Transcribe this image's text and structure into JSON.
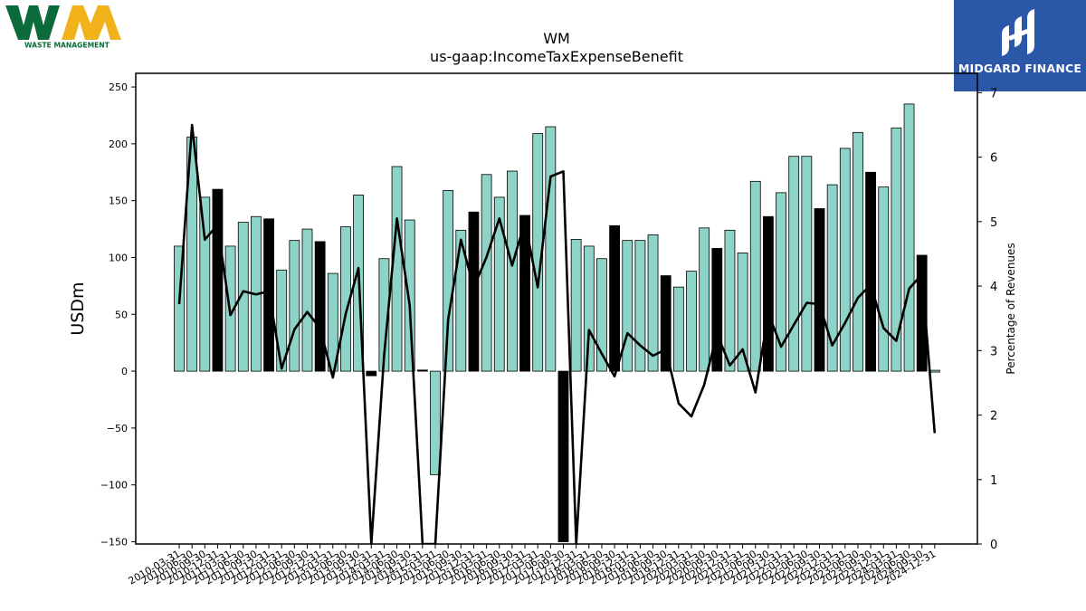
{
  "logos": {
    "left": {
      "name": "Waste Management",
      "text": "WASTE MANAGEMENT",
      "colors": [
        "#0b6b3a",
        "#f2b21b"
      ]
    },
    "right": {
      "name": "Midgard Finance",
      "text": "MIDGARD FINANCE",
      "color": "#2b57a8"
    }
  },
  "chart_data": {
    "type": "bar",
    "title": "WM",
    "subtitle": "us-gaap:IncomeTaxExpenseBenefit",
    "ylabel": "USDm",
    "y2label": "Percentage of Revenues",
    "ylim": [
      -152,
      262
    ],
    "y2lim": [
      0,
      7.3
    ],
    "yticks": [
      -150,
      -100,
      -50,
      0,
      50,
      100,
      150,
      200,
      250
    ],
    "y2ticks": [
      0,
      1,
      2,
      3,
      4,
      5,
      6,
      7
    ],
    "grid": false,
    "colors": {
      "quarter_bar": "#8dd3c7",
      "annual_bar": "#000000",
      "line": "#000000"
    },
    "categories": [
      "2010-03-31",
      "2010-06-30",
      "2010-09-30",
      "2010-12-31",
      "2011-03-31",
      "2011-06-30",
      "2011-09-30",
      "2011-12-31",
      "2012-03-31",
      "2012-06-30",
      "2012-09-30",
      "2012-12-31",
      "2013-03-31",
      "2013-06-30",
      "2013-09-30",
      "2013-12-31",
      "2014-03-31",
      "2014-06-30",
      "2014-09-30",
      "2014-12-31",
      "2015-03-31",
      "2015-06-30",
      "2015-09-30",
      "2015-12-31",
      "2016-03-31",
      "2016-06-30",
      "2016-09-30",
      "2016-12-31",
      "2017-03-31",
      "2017-06-30",
      "2017-09-30",
      "2017-12-31",
      "2018-03-31",
      "2018-06-30",
      "2018-09-30",
      "2018-12-31",
      "2019-03-31",
      "2019-06-30",
      "2019-09-30",
      "2019-12-31",
      "2020-03-31",
      "2020-06-30",
      "2020-09-30",
      "2020-12-31",
      "2021-03-31",
      "2021-06-30",
      "2021-09-30",
      "2021-12-31",
      "2022-03-31",
      "2022-06-30",
      "2022-09-30",
      "2022-12-31",
      "2023-03-31",
      "2023-06-30",
      "2023-09-30",
      "2023-12-31",
      "2024-03-31",
      "2024-06-30",
      "2024-09-30",
      "2024-12-31"
    ],
    "series": [
      {
        "kind": "bar",
        "values": [
          110,
          206,
          153,
          160,
          110,
          131,
          136,
          134,
          89,
          115,
          125,
          114,
          86,
          127,
          155,
          -4,
          99,
          180,
          133,
          1,
          -91,
          159,
          124,
          140,
          173,
          153,
          176,
          137,
          209,
          215,
          -150,
          116,
          110,
          99,
          128,
          115,
          115,
          120,
          84,
          74,
          88,
          126,
          108,
          124,
          104,
          167,
          136,
          157,
          189,
          189,
          143,
          164,
          196,
          210,
          175,
          162,
          214,
          235,
          102,
          0
        ],
        "annual": [
          false,
          false,
          false,
          true,
          false,
          false,
          false,
          true,
          false,
          false,
          false,
          true,
          false,
          false,
          false,
          true,
          false,
          false,
          false,
          true,
          false,
          false,
          false,
          true,
          false,
          false,
          false,
          true,
          false,
          false,
          true,
          false,
          false,
          false,
          true,
          false,
          false,
          false,
          true,
          false,
          false,
          false,
          true,
          false,
          false,
          false,
          true,
          false,
          false,
          false,
          true,
          false,
          false,
          false,
          true,
          false,
          false,
          false,
          true,
          false
        ]
      },
      {
        "kind": "line",
        "axis": "right",
        "values": [
          3.72,
          6.5,
          4.72,
          4.95,
          3.55,
          3.92,
          3.87,
          3.92,
          2.72,
          3.33,
          3.6,
          3.35,
          2.58,
          3.57,
          4.28,
          0.0,
          2.92,
          5.05,
          3.7,
          0.0,
          0.0,
          3.48,
          4.72,
          3.98,
          4.45,
          5.05,
          4.32,
          5.0,
          3.98,
          5.7,
          5.78,
          0.0,
          3.32,
          2.95,
          2.6,
          3.27,
          3.08,
          2.92,
          3.02,
          2.18,
          1.98,
          2.47,
          3.26,
          2.77,
          3.02,
          2.35,
          3.58,
          3.06,
          3.4,
          3.74,
          3.72,
          3.08,
          3.43,
          3.82,
          4.02,
          3.35,
          3.15,
          3.96,
          4.18,
          1.72
        ]
      }
    ]
  }
}
